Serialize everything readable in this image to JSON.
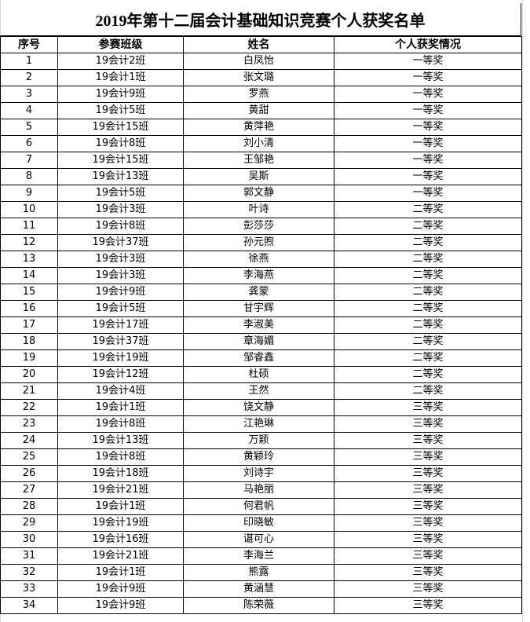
{
  "title": "2019年第十二届会计基础知识竞赛个人获奖名单",
  "headers": [
    "序号",
    "参赛班级",
    "姓名",
    "个人获奖情况"
  ],
  "rows": [
    [
      "1",
      "19会计2班",
      "白凤怡",
      "一等奖"
    ],
    [
      "2",
      "19会计1班",
      "张文璐",
      "一等奖"
    ],
    [
      "3",
      "19会计9班",
      "罗燕",
      "一等奖"
    ],
    [
      "4",
      "19会计5班",
      "黄甜",
      "一等奖"
    ],
    [
      "5",
      "19会计15班",
      "黄萍艳",
      "一等奖"
    ],
    [
      "6",
      "19会计8班",
      "刘小清",
      "一等奖"
    ],
    [
      "7",
      "19会计15班",
      "王邹艳",
      "一等奖"
    ],
    [
      "8",
      "19会计13班",
      "吴斯",
      "一等奖"
    ],
    [
      "9",
      "19会计5班",
      "郭文静",
      "一等奖"
    ],
    [
      "10",
      "19会计3班",
      "叶诗",
      "二等奖"
    ],
    [
      "11",
      "19会计8班",
      "彭莎莎",
      "二等奖"
    ],
    [
      "12",
      "19会计37班",
      "孙元煦",
      "二等奖"
    ],
    [
      "13",
      "19会计3班",
      "徐燕",
      "二等奖"
    ],
    [
      "14",
      "19会计3班",
      "李海燕",
      "二等奖"
    ],
    [
      "15",
      "19会计9班",
      "龚蒙",
      "二等奖"
    ],
    [
      "16",
      "19会计5班",
      "甘宇辉",
      "二等奖"
    ],
    [
      "17",
      "19会计17班",
      "李淑美",
      "二等奖"
    ],
    [
      "18",
      "19会计37班",
      "章海媚",
      "二等奖"
    ],
    [
      "19",
      "19会计19班",
      "邹睿鑫",
      "二等奖"
    ],
    [
      "20",
      "19会计12班",
      "杜硕",
      "二等奖"
    ],
    [
      "21",
      "19会计4班",
      "王然",
      "二等奖"
    ],
    [
      "22",
      "19会计1班",
      "饶文静",
      "三等奖"
    ],
    [
      "23",
      "19会计8班",
      "江艳琳",
      "三等奖"
    ],
    [
      "24",
      "19会计13班",
      "万颖",
      "三等奖"
    ],
    [
      "25",
      "19会计8班",
      "黄颖玲",
      "三等奖"
    ],
    [
      "26",
      "19会计18班",
      "刘诗宇",
      "三等奖"
    ],
    [
      "27",
      "19会计21班",
      "马艳丽",
      "三等奖"
    ],
    [
      "28",
      "19会计1班",
      "何君帆",
      "三等奖"
    ],
    [
      "29",
      "19会计19班",
      "印晓敏",
      "三等奖"
    ],
    [
      "30",
      "19会计16班",
      "谌可心",
      "三等奖"
    ],
    [
      "31",
      "19会计21班",
      "李海兰",
      "三等奖"
    ],
    [
      "32",
      "19会计1班",
      "熊露",
      "三等奖"
    ],
    [
      "33",
      "19会计9班",
      "黄涵慧",
      "三等奖"
    ],
    [
      "34",
      "19会计9班",
      "陈荣薇",
      "三等奖"
    ]
  ]
}
